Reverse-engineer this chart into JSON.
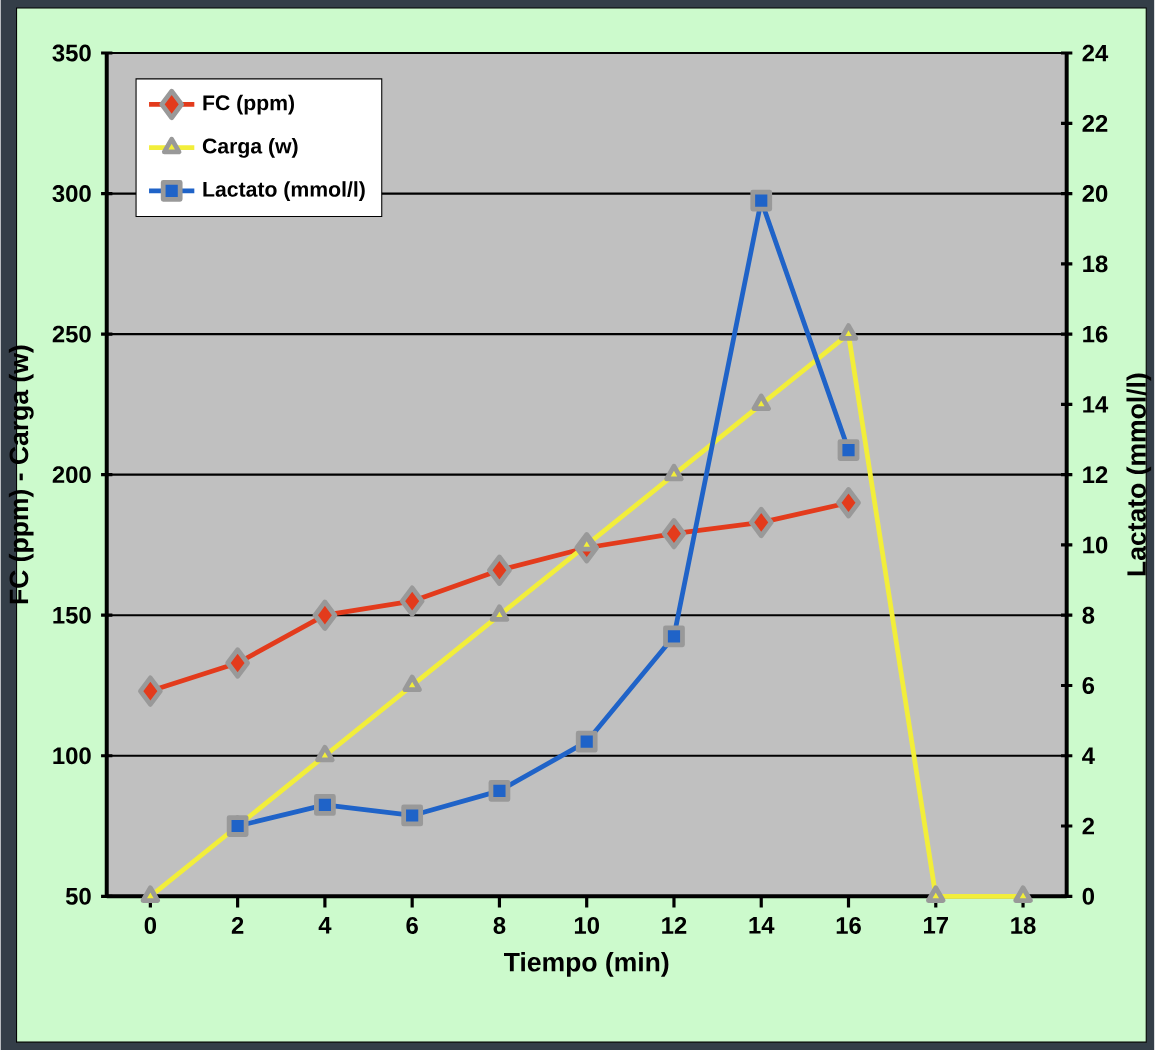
{
  "chart_data": {
    "type": "line",
    "xlabel": "Tiempo (min)",
    "ylabel": "FC (ppm) - Carga (w)",
    "y2label": "Lactato (mmol/l)",
    "categories": [
      "0",
      "2",
      "4",
      "6",
      "8",
      "10",
      "12",
      "14",
      "16",
      "17",
      "18"
    ],
    "series": [
      {
        "name": "FC (ppm)",
        "color": "#e33b1c",
        "marker": "diamond",
        "values": [
          123,
          133,
          150,
          155,
          166,
          174,
          179,
          183,
          190,
          null,
          null
        ]
      },
      {
        "name": "Carga (w)",
        "color": "#f2ee3a",
        "marker": "triangle",
        "values": [
          50,
          75,
          100,
          125,
          150,
          175,
          200,
          225,
          250,
          50,
          50
        ]
      },
      {
        "name": "Lactato (mmol/l)",
        "color": "#1f63c8",
        "marker": "square",
        "axis": "y2",
        "values": [
          null,
          2.0,
          2.6,
          2.3,
          3.0,
          4.4,
          7.4,
          19.8,
          12.7,
          null,
          null
        ]
      }
    ],
    "ylim": [
      50,
      350
    ],
    "yticks": [
      50,
      100,
      150,
      200,
      250,
      300,
      350
    ],
    "y2lim": [
      0,
      24
    ],
    "y2ticks": [
      0,
      2,
      4,
      6,
      8,
      10,
      12,
      14,
      16,
      18,
      20,
      22,
      24
    ],
    "grid": "y",
    "legend": "top left",
    "line_style": "solid"
  }
}
